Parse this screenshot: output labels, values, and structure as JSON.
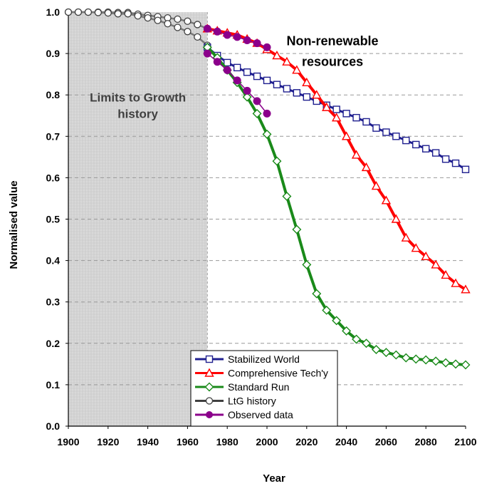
{
  "chart_data": {
    "type": "line",
    "xlabel": "Year",
    "ylabel": "Normalised value",
    "xlim": [
      1900,
      2100
    ],
    "ylim": [
      0,
      1
    ],
    "xticks": [
      "1900",
      "1920",
      "1940",
      "1960",
      "1980",
      "2000",
      "2020",
      "2040",
      "2060",
      "2080",
      "2100"
    ],
    "yticks": [
      "0.0",
      "0.1",
      "0.2",
      "0.3",
      "0.4",
      "0.5",
      "0.6",
      "0.7",
      "0.8",
      "0.9",
      "1.0"
    ],
    "grid": "horizontal dashed",
    "legend_position": "bottom-center",
    "annotations": [
      {
        "text": "Non-renewable",
        "x": 2033,
        "y": 0.92,
        "color": "#000000"
      },
      {
        "text": "resources",
        "x": 2033,
        "y": 0.87,
        "color": "#000000"
      },
      {
        "text": "Limits to Growth",
        "x": 1935,
        "y": 0.784,
        "color": "#404040"
      },
      {
        "text": "history",
        "x": 1935,
        "y": 0.744,
        "color": "#404040"
      }
    ],
    "shaded_region": {
      "x_start": 1900,
      "x_end": 1970,
      "label": "Limits to Growth history"
    },
    "series": [
      {
        "name": "Stabilized World",
        "color": "#1f1f8f",
        "marker": "square",
        "x": [
          1970,
          1975,
          1980,
          1985,
          1990,
          1995,
          2000,
          2005,
          2010,
          2015,
          2020,
          2025,
          2030,
          2035,
          2040,
          2045,
          2050,
          2055,
          2060,
          2065,
          2070,
          2075,
          2080,
          2085,
          2090,
          2095,
          2100
        ],
        "values": [
          0.915,
          0.895,
          0.878,
          0.866,
          0.855,
          0.845,
          0.835,
          0.825,
          0.815,
          0.805,
          0.795,
          0.785,
          0.775,
          0.765,
          0.755,
          0.745,
          0.735,
          0.72,
          0.71,
          0.7,
          0.69,
          0.68,
          0.67,
          0.66,
          0.645,
          0.635,
          0.62
        ]
      },
      {
        "name": "Comprehensive Tech'y",
        "color": "#ff0000",
        "marker": "triangle",
        "x": [
          1970,
          1975,
          1980,
          1985,
          1990,
          1995,
          2000,
          2005,
          2010,
          2015,
          2020,
          2025,
          2030,
          2035,
          2040,
          2045,
          2050,
          2055,
          2060,
          2065,
          2070,
          2075,
          2080,
          2085,
          2090,
          2095,
          2100
        ],
        "values": [
          0.96,
          0.955,
          0.95,
          0.945,
          0.935,
          0.925,
          0.91,
          0.895,
          0.88,
          0.86,
          0.83,
          0.8,
          0.77,
          0.745,
          0.7,
          0.655,
          0.625,
          0.58,
          0.545,
          0.5,
          0.455,
          0.43,
          0.41,
          0.39,
          0.365,
          0.345,
          0.33
        ]
      },
      {
        "name": "Standard Run",
        "color": "#1a8a1a",
        "marker": "diamond",
        "x": [
          1970,
          1975,
          1980,
          1985,
          1990,
          1995,
          2000,
          2005,
          2010,
          2015,
          2020,
          2025,
          2030,
          2035,
          2040,
          2045,
          2050,
          2055,
          2060,
          2065,
          2070,
          2075,
          2080,
          2085,
          2090,
          2095,
          2100
        ],
        "values": [
          0.915,
          0.89,
          0.86,
          0.83,
          0.795,
          0.755,
          0.705,
          0.64,
          0.555,
          0.475,
          0.39,
          0.32,
          0.28,
          0.255,
          0.23,
          0.21,
          0.2,
          0.185,
          0.178,
          0.172,
          0.165,
          0.162,
          0.16,
          0.157,
          0.153,
          0.15,
          0.148
        ]
      },
      {
        "name": "LtG history",
        "color": "#7a7a7a",
        "marker": "circle-open",
        "x": [
          1900,
          1905,
          1910,
          1915,
          1920,
          1925,
          1930,
          1935,
          1940,
          1945,
          1950,
          1955,
          1960,
          1965,
          1970
        ],
        "values": [
          1.0,
          1.0,
          1.0,
          0.999,
          0.998,
          0.996,
          0.996,
          0.991,
          0.986,
          0.98,
          0.972,
          0.963,
          0.953,
          0.94,
          0.92
        ]
      },
      {
        "name": "Observed data",
        "color": "#8b008b",
        "marker": "circle-filled",
        "x": [
          1970,
          1975,
          1980,
          1985,
          1990,
          1995,
          2000
        ],
        "values": [
          0.9,
          0.88,
          0.86,
          0.835,
          0.81,
          0.785,
          0.755
        ]
      },
      {
        "name": "",
        "color": "#8b008b",
        "marker": "circle-filled",
        "x": [
          1970,
          1975,
          1980,
          1985,
          1990,
          1995,
          2000
        ],
        "values": [
          0.96,
          0.953,
          0.945,
          0.94,
          0.932,
          0.925,
          0.915
        ]
      }
    ],
    "ltg_history_upper": {
      "x": [
        1900,
        1905,
        1910,
        1915,
        1920,
        1925,
        1930,
        1935,
        1940,
        1945,
        1950,
        1955,
        1960,
        1965,
        1970
      ],
      "values": [
        1.0,
        1.0,
        1.0,
        1.0,
        1.0,
        0.999,
        0.999,
        0.995,
        0.992,
        0.989,
        0.986,
        0.983,
        0.978,
        0.97,
        0.96
      ]
    }
  }
}
